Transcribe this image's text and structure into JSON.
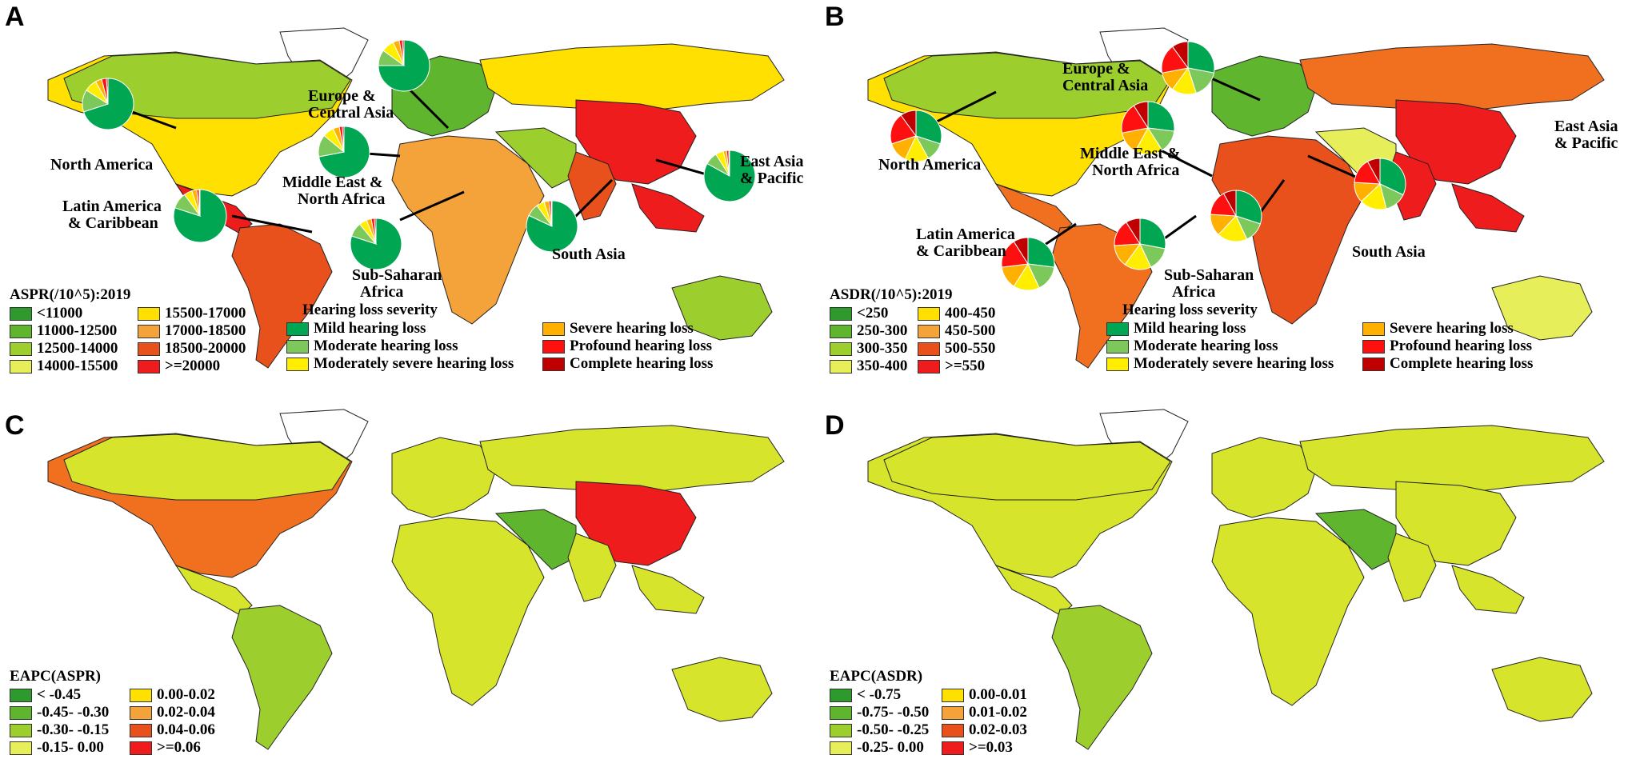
{
  "panels": [
    {
      "label": "A"
    },
    {
      "label": "B"
    },
    {
      "label": "C"
    },
    {
      "label": "D"
    }
  ],
  "colors": {
    "dgreen": "#2e9a2e",
    "mgreen": "#5fb52d",
    "lgreen": "#9ccf2e",
    "yg": "#d6e52b",
    "yellow": "#ffe000",
    "lorange": "#f4a23a",
    "orange": "#f07020",
    "dorange": "#e8501c",
    "red": "#ee1c1c",
    "mild": "#00a651",
    "moderate": "#7cc85a",
    "modsevere": "#ffee00",
    "severe": "#ffb000",
    "profound": "#ff1010",
    "complete": "#c00000"
  },
  "legendA": {
    "title": "ASPR(/10^5):2019",
    "items": [
      "<11000",
      "11000-12500",
      "12500-14000",
      "14000-15500",
      "15500-17000",
      "17000-18500",
      "18500-20000",
      ">=20000"
    ]
  },
  "legendB": {
    "title": "ASDR(/10^5):2019",
    "items": [
      "<250",
      "250-300",
      "300-350",
      "350-400",
      "400-450",
      "450-500",
      "500-550",
      ">=550"
    ]
  },
  "legendC": {
    "title": "EAPC(ASPR)",
    "items": [
      "< -0.45",
      "-0.45- -0.30",
      "-0.30- -0.15",
      "-0.15- 0.00",
      "0.00-0.02",
      "0.02-0.04",
      "0.04-0.06",
      ">=0.06"
    ]
  },
  "legendD": {
    "title": "EAPC(ASDR)",
    "items": [
      "< -0.75",
      "-0.75- -0.50",
      "-0.50- -0.25",
      "-0.25- 0.00",
      "0.00-0.01",
      "0.01-0.02",
      "0.02-0.03",
      ">=0.03"
    ]
  },
  "severity": {
    "title": "Hearing loss severity",
    "items": [
      "Mild hearing loss",
      "Moderate  hearing loss",
      "Moderately severe  hearing loss",
      "Severe hearing loss",
      "Profound hearing loss",
      "Complete hearing loss"
    ]
  },
  "regions": {
    "north_america": "North America",
    "europe_1": "Europe &",
    "europe_2": "Central Asia",
    "mena_1": "Middle East &",
    "mena_2": "North Africa",
    "latam_1": "Latin America",
    "latam_2": "& Caribbean",
    "ssa_1": "Sub-Saharan",
    "ssa_2": "Africa",
    "south_asia": "South Asia",
    "eap_1": "East Asia",
    "eap_2": "& Pacific"
  },
  "pies_A": {
    "north_america": [
      0.7,
      0.14,
      0.08,
      0.04,
      0.03,
      0.01
    ],
    "europe": [
      0.75,
      0.1,
      0.08,
      0.04,
      0.02,
      0.01
    ],
    "mena": [
      0.72,
      0.14,
      0.07,
      0.04,
      0.02,
      0.01
    ],
    "latam": [
      0.8,
      0.1,
      0.05,
      0.03,
      0.015,
      0.005
    ],
    "ssa": [
      0.8,
      0.09,
      0.05,
      0.03,
      0.02,
      0.01
    ],
    "south_asia": [
      0.82,
      0.08,
      0.05,
      0.03,
      0.015,
      0.005
    ],
    "eap": [
      0.83,
      0.08,
      0.05,
      0.02,
      0.015,
      0.005
    ]
  },
  "pies_B": {
    "north_america": [
      0.3,
      0.12,
      0.15,
      0.13,
      0.2,
      0.1
    ],
    "europe": [
      0.28,
      0.17,
      0.15,
      0.12,
      0.18,
      0.1
    ],
    "mena": [
      0.27,
      0.14,
      0.17,
      0.14,
      0.19,
      0.09
    ],
    "latam": [
      0.27,
      0.16,
      0.16,
      0.14,
      0.18,
      0.09
    ],
    "ssa": [
      0.28,
      0.15,
      0.17,
      0.14,
      0.17,
      0.09
    ],
    "south_asia": [
      0.3,
      0.13,
      0.19,
      0.14,
      0.16,
      0.08
    ],
    "eap": [
      0.32,
      0.14,
      0.17,
      0.13,
      0.16,
      0.08
    ]
  }
}
